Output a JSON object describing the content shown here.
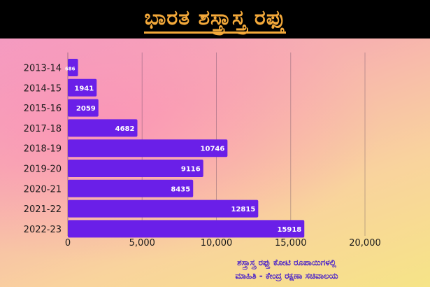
{
  "header": {
    "title": "ಭಾರತ ಶಸ್ತ್ರಾಸ್ತ್ರ ರಫ್ತು"
  },
  "footer": {
    "line1": "ಶಸ್ತ್ರಾಸ್ತ್ರ ರಫ್ತು ಕೋಟಿ ರೂಪಾಯಿಗಳಲ್ಲಿ",
    "line2": "ಮಾಹಿತಿ - ಕೇಂದ್ರ ರಕ್ಷಣಾ ಸಚಿವಾಲಯ"
  },
  "colors": {
    "bar": "#6a1fe8",
    "title": "#f4a93a",
    "footer_text": "#4a22c9",
    "banner": "#000000"
  },
  "chart_data": {
    "type": "bar",
    "orientation": "horizontal",
    "title": "ಭಾರತ ಶಸ್ತ್ರಾಸ್ತ್ರ ರಫ್ತು",
    "categories": [
      "2013-14",
      "2014-15",
      "2015-16",
      "2017-18",
      "2018-19",
      "2019-20",
      "2020-21",
      "2021-22",
      "2022-23"
    ],
    "values": [
      686,
      1941,
      2059,
      4682,
      10746,
      9116,
      8435,
      12815,
      15918
    ],
    "value_labels": [
      "686",
      "1941",
      "2059",
      "4682",
      "10746",
      "9116",
      "8435",
      "12815",
      "15918"
    ],
    "xlim": [
      0,
      20000
    ],
    "xticks": [
      0,
      5000,
      10000,
      15000,
      20000
    ],
    "xtick_labels": [
      "0",
      "5,000",
      "10,000",
      "15,000",
      "20,000"
    ],
    "grid": "vertical"
  }
}
